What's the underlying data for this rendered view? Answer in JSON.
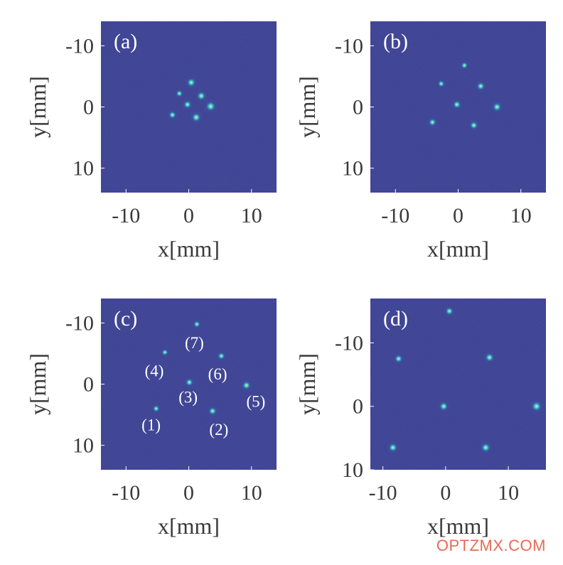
{
  "colors": {
    "background": "#3a3d8e",
    "spot_core": "#c8f0a0",
    "spot_mid": "#3fc8c8",
    "spot_halo": "#2f6fb2",
    "text": "#3a3a3a",
    "watermark": "#e46b55"
  },
  "watermark": "OPTZMX.COM",
  "chart_data": [
    {
      "type": "heatmap",
      "panel_label": "(a)",
      "xlabel": "x[mm]",
      "ylabel": "y[mm]",
      "xlim": [
        -14,
        14
      ],
      "ylim": [
        -14,
        14
      ],
      "y_inverted": true,
      "xticks": [
        {
          "v": -10,
          "t": "-10"
        },
        {
          "v": 0,
          "t": "0"
        },
        {
          "v": 10,
          "t": "10"
        }
      ],
      "yticks": [
        {
          "v": -10,
          "t": "-10"
        },
        {
          "v": 0,
          "t": "0"
        },
        {
          "v": 10,
          "t": "10"
        }
      ],
      "spots": [
        {
          "x": -2.6,
          "y": 1.3,
          "i": 0.7
        },
        {
          "x": 1.2,
          "y": 1.7,
          "i": 0.9
        },
        {
          "x": -0.2,
          "y": -0.4,
          "i": 0.75
        },
        {
          "x": 3.5,
          "y": -0.1,
          "i": 1.0
        },
        {
          "x": 2.0,
          "y": -1.8,
          "i": 0.85
        },
        {
          "x": -1.5,
          "y": -2.2,
          "i": 0.6
        },
        {
          "x": 0.4,
          "y": -4.0,
          "i": 0.85
        }
      ],
      "labels": []
    },
    {
      "type": "heatmap",
      "panel_label": "(b)",
      "xlabel": "x[mm]",
      "ylabel": "y[mm]",
      "xlim": [
        -14,
        14
      ],
      "ylim": [
        -14,
        14
      ],
      "y_inverted": true,
      "xticks": [
        {
          "v": -10,
          "t": "-10"
        },
        {
          "v": 0,
          "t": "0"
        },
        {
          "v": 10,
          "t": "10"
        }
      ],
      "yticks": [
        {
          "v": -10,
          "t": "-10"
        },
        {
          "v": 0,
          "t": "0"
        },
        {
          "v": 10,
          "t": "10"
        }
      ],
      "spots": [
        {
          "x": -4.1,
          "y": 2.5,
          "i": 0.7
        },
        {
          "x": 2.5,
          "y": 3.0,
          "i": 0.75
        },
        {
          "x": -0.2,
          "y": -0.4,
          "i": 0.75
        },
        {
          "x": 6.2,
          "y": 0.0,
          "i": 0.85
        },
        {
          "x": -2.7,
          "y": -3.8,
          "i": 0.6
        },
        {
          "x": 3.6,
          "y": -3.4,
          "i": 0.75
        },
        {
          "x": 1.0,
          "y": -6.8,
          "i": 0.6
        }
      ],
      "labels": []
    },
    {
      "type": "heatmap",
      "panel_label": "(c)",
      "xlabel": "x[mm]",
      "ylabel": "y[mm]",
      "xlim": [
        -14,
        14
      ],
      "ylim": [
        -14,
        14
      ],
      "y_inverted": true,
      "xticks": [
        {
          "v": -10,
          "t": "-10"
        },
        {
          "v": 0,
          "t": "0"
        },
        {
          "v": 10,
          "t": "10"
        }
      ],
      "yticks": [
        {
          "v": -10,
          "t": "-10"
        },
        {
          "v": 0,
          "t": "0"
        },
        {
          "v": 10,
          "t": "10"
        }
      ],
      "spots": [
        {
          "x": -5.2,
          "y": 4.0,
          "i": 0.6
        },
        {
          "x": 3.8,
          "y": 4.4,
          "i": 0.75
        },
        {
          "x": 0.1,
          "y": -0.3,
          "i": 0.7
        },
        {
          "x": -3.8,
          "y": -5.2,
          "i": 0.55
        },
        {
          "x": 9.2,
          "y": 0.2,
          "i": 0.8
        },
        {
          "x": 5.2,
          "y": -4.6,
          "i": 0.65
        },
        {
          "x": 1.3,
          "y": -9.8,
          "i": 0.6
        }
      ],
      "labels": [
        {
          "text": "(1)",
          "x": -6.0,
          "y": 6.6
        },
        {
          "text": "(2)",
          "x": 4.8,
          "y": 7.4
        },
        {
          "text": "(3)",
          "x": -0.1,
          "y": 2.1
        },
        {
          "text": "(4)",
          "x": -5.5,
          "y": -2.2
        },
        {
          "text": "(5)",
          "x": 10.7,
          "y": 2.8
        },
        {
          "text": "(6)",
          "x": 4.6,
          "y": -1.7
        },
        {
          "text": "(7)",
          "x": 0.9,
          "y": -6.8
        }
      ]
    },
    {
      "type": "heatmap",
      "panel_label": "(d)",
      "xlabel": "x[mm]",
      "ylabel": "y[mm]",
      "xlim": [
        -12,
        16
      ],
      "ylim": [
        -17,
        10
      ],
      "y_inverted": true,
      "xticks": [
        {
          "v": -10,
          "t": "-10"
        },
        {
          "v": 0,
          "t": "0"
        },
        {
          "v": 10,
          "t": "10"
        }
      ],
      "yticks": [
        {
          "v": -10,
          "t": "-10"
        },
        {
          "v": 0,
          "t": "0"
        },
        {
          "v": 10,
          "t": "10"
        }
      ],
      "spots": [
        {
          "x": -7.5,
          "y": -7.5,
          "i": 0.75
        },
        {
          "x": 7.0,
          "y": -7.7,
          "i": 0.85
        },
        {
          "x": -0.3,
          "y": 0.0,
          "i": 0.85
        },
        {
          "x": 14.5,
          "y": 0.0,
          "i": 1.0
        },
        {
          "x": -8.4,
          "y": 6.5,
          "i": 0.85
        },
        {
          "x": 6.4,
          "y": 6.5,
          "i": 0.9
        },
        {
          "x": 0.6,
          "y": -15.0,
          "i": 0.75
        }
      ],
      "labels": []
    }
  ]
}
